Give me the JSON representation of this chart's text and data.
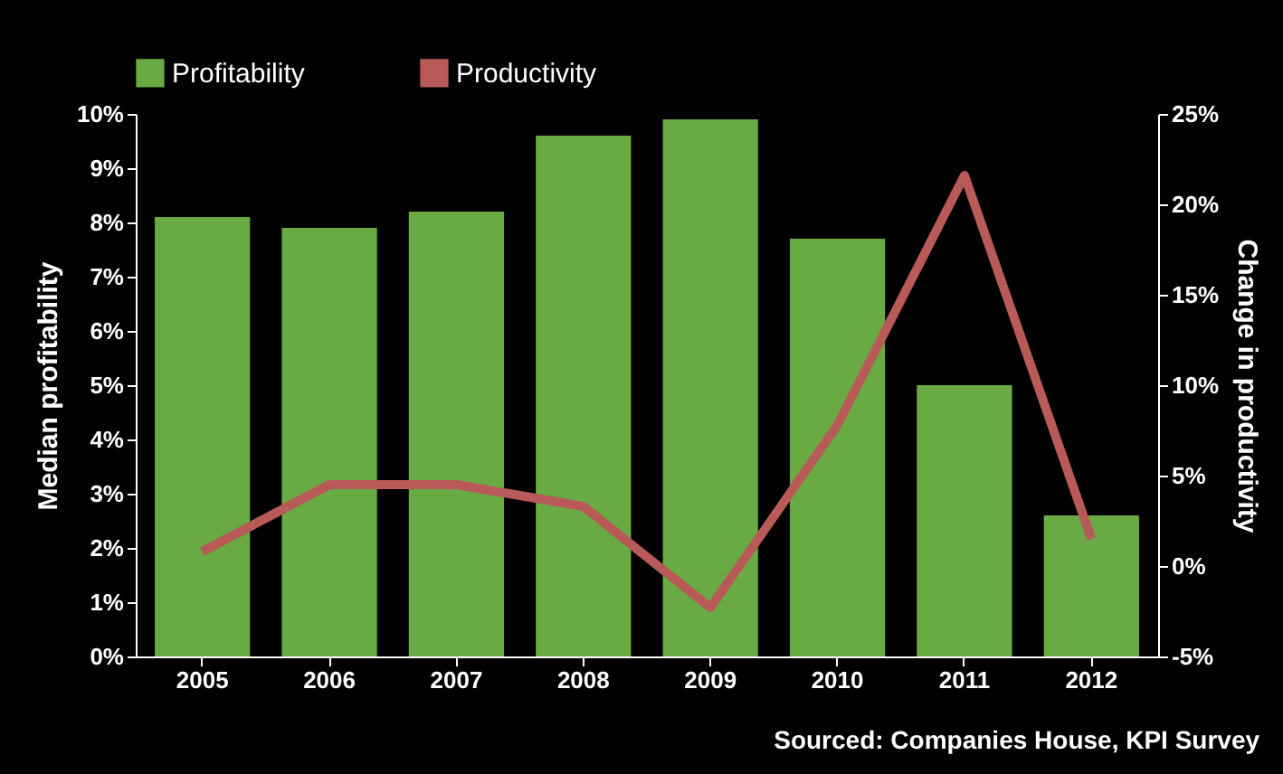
{
  "chart_data": {
    "type": "bar",
    "categories": [
      "2005",
      "2006",
      "2007",
      "2008",
      "2009",
      "2010",
      "2011",
      "2012"
    ],
    "ylabel": "Median profitability",
    "y2label": "Change in productivity",
    "series": [
      {
        "name": "Profitability",
        "color": "#6aaa45",
        "values": [
          8.1,
          7.9,
          8.2,
          9.6,
          9.9,
          7.7,
          5.0,
          2.6
        ]
      },
      {
        "name": "Productivity",
        "type": "line",
        "axis": "y2",
        "color": "#b85a58",
        "values": [
          0.8,
          4.5,
          4.5,
          3.3,
          -2.3,
          7.8,
          21.6,
          1.5
        ]
      }
    ],
    "ylim": [
      0,
      10
    ],
    "yticks": [
      {
        "value": 0,
        "label": "0%"
      },
      {
        "value": 1,
        "label": "1%"
      },
      {
        "value": 2,
        "label": "2%"
      },
      {
        "value": 3,
        "label": "3%"
      },
      {
        "value": 4,
        "label": "4%"
      },
      {
        "value": 5,
        "label": "5%"
      },
      {
        "value": 6,
        "label": "6%"
      },
      {
        "value": 7,
        "label": "7%"
      },
      {
        "value": 8,
        "label": "8%"
      },
      {
        "value": 9,
        "label": "9%"
      },
      {
        "value": 10,
        "label": "10%"
      }
    ],
    "y2lim": [
      -5,
      25
    ],
    "y2ticks": [
      {
        "value": -5,
        "label": "-5%"
      },
      {
        "value": 0,
        "label": "0%"
      },
      {
        "value": 5,
        "label": "5%"
      },
      {
        "value": 10,
        "label": "10%"
      },
      {
        "value": 15,
        "label": "15%"
      },
      {
        "value": 20,
        "label": "20%"
      },
      {
        "value": 25,
        "label": "25%"
      }
    ],
    "legend": "top",
    "grid": false,
    "annotations": [
      "Sourced:  Companies House, KPI Survey"
    ]
  }
}
